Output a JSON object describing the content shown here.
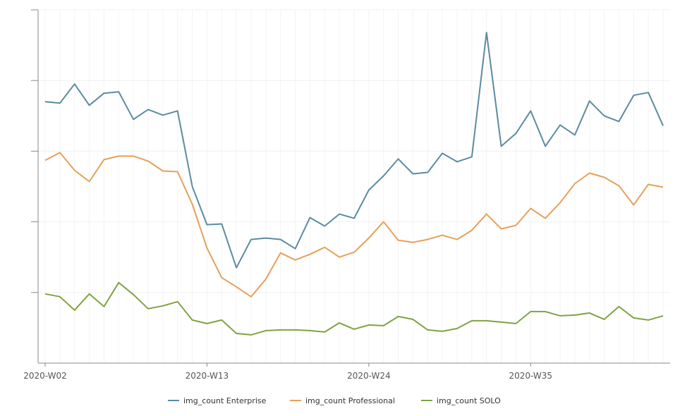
{
  "chart_data": {
    "type": "line",
    "title": "",
    "xlabel": "",
    "ylabel": "",
    "x_tick_labels": [
      "2020-W02",
      "2020-W13",
      "2020-W24",
      "2020-W35"
    ],
    "x_tick_indices": [
      0,
      11,
      22,
      33
    ],
    "n_points": 43,
    "grid": true,
    "legend_position": "bottom",
    "series": [
      {
        "name": "img_count Enterprise",
        "color": "#5b8c9e",
        "values": [
          370,
          368,
          395,
          365,
          382,
          384,
          345,
          359,
          351,
          357,
          250,
          196,
          197,
          135,
          175,
          177,
          175,
          162,
          206,
          194,
          211,
          205,
          245,
          265,
          289,
          268,
          270,
          297,
          285,
          292,
          468,
          307,
          325,
          357,
          307,
          337,
          323,
          371,
          350,
          342,
          379,
          383,
          336
        ]
      },
      {
        "name": "img_count Professional",
        "color": "#e6a05a",
        "values": [
          287,
          298,
          273,
          257,
          288,
          293,
          293,
          286,
          272,
          271,
          225,
          163,
          121,
          108,
          94,
          119,
          156,
          146,
          154,
          164,
          150,
          157,
          177,
          200,
          174,
          171,
          175,
          181,
          175,
          188,
          211,
          190,
          195,
          219,
          205,
          227,
          254,
          269,
          263,
          251,
          224,
          253,
          249
        ]
      },
      {
        "name": "img_count SOLO",
        "color": "#80a342",
        "values": [
          98,
          94,
          75,
          98,
          80,
          114,
          97,
          77,
          81,
          87,
          61,
          56,
          61,
          42,
          40,
          46,
          47,
          47,
          46,
          44,
          57,
          48,
          54,
          53,
          66,
          62,
          47,
          45,
          49,
          60,
          60,
          58,
          56,
          73,
          73,
          67,
          68,
          71,
          62,
          80,
          64,
          61,
          67
        ]
      }
    ],
    "ylim": [
      0,
      500
    ]
  }
}
